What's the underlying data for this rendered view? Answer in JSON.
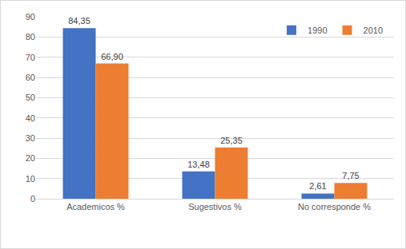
{
  "chart_data": {
    "type": "bar",
    "categories": [
      "Academicos %",
      "Sugestivos %",
      "No corresponde %"
    ],
    "series": [
      {
        "name": "1990",
        "color": "#4472c4",
        "values": [
          84.35,
          13.48,
          2.61
        ],
        "value_labels": [
          "84,35",
          "13,48",
          "2,61"
        ]
      },
      {
        "name": "2010",
        "color": "#ed7d31",
        "values": [
          66.9,
          25.35,
          7.75
        ],
        "value_labels": [
          "66,90",
          "25,35",
          "7,75"
        ]
      }
    ],
    "ylim": [
      0,
      90
    ],
    "yticks": [
      0,
      10,
      20,
      30,
      40,
      50,
      60,
      70,
      80,
      90
    ],
    "grid": true,
    "legend": "upper right",
    "data_labels": true
  }
}
